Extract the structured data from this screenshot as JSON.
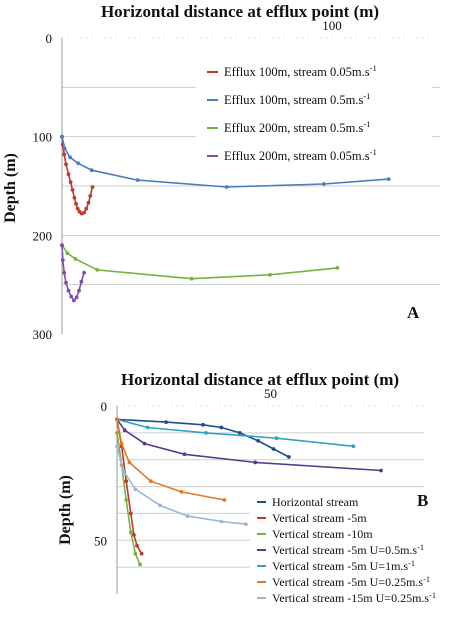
{
  "chart_data": [
    {
      "type": "line",
      "panel_label": "A",
      "title": "Horizontal distance at efflux point (m)",
      "xlabel": "Horizontal distance at efflux point (m)",
      "ylabel": "Depth (m)",
      "x_ticks": [
        "100"
      ],
      "y_ticks": [
        "0",
        "100",
        "200",
        "300"
      ],
      "xlim": [
        0,
        140
      ],
      "ylim": [
        0,
        300
      ],
      "y_inverted": true,
      "grid": true,
      "legend_position": "right",
      "series": [
        {
          "name": "Efflux 100m, stream 0.05m.s-1",
          "color": "#c0392b",
          "points": [
            [
              0,
              100
            ],
            [
              0.3,
              108
            ],
            [
              0.8,
              118
            ],
            [
              1.5,
              128
            ],
            [
              2.4,
              138
            ],
            [
              3.2,
              146
            ],
            [
              3.9,
              154
            ],
            [
              4.6,
              162
            ],
            [
              5.2,
              168
            ],
            [
              5.8,
              173
            ],
            [
              6.5,
              176
            ],
            [
              7.3,
              178
            ],
            [
              8.2,
              177
            ],
            [
              9,
              173
            ],
            [
              9.8,
              167
            ],
            [
              10.5,
              160
            ],
            [
              11.3,
              151
            ]
          ]
        },
        {
          "name": "Efflux 100m, stream 0.5m.s-1",
          "color": "#4a7ebb",
          "points": [
            [
              0,
              100
            ],
            [
              1,
              112
            ],
            [
              3,
              121
            ],
            [
              6,
              127
            ],
            [
              11,
              134
            ],
            [
              28,
              144
            ],
            [
              61,
              151
            ],
            [
              97,
              148
            ],
            [
              121,
              143
            ]
          ]
        },
        {
          "name": "Efflux 200m, stream 0.5m.s-1",
          "color": "#77b341",
          "points": [
            [
              0,
              210
            ],
            [
              2,
              218
            ],
            [
              5,
              224
            ],
            [
              13,
              235
            ],
            [
              48,
              244
            ],
            [
              77,
              240
            ],
            [
              102,
              233
            ]
          ]
        },
        {
          "name": "Efflux 200m, stream 0.05m.s-1",
          "color": "#7d4ea8",
          "points": [
            [
              0,
              210
            ],
            [
              0.3,
              225
            ],
            [
              0.8,
              238
            ],
            [
              1.5,
              248
            ],
            [
              2.4,
              256
            ],
            [
              3.4,
              262
            ],
            [
              4.4,
              266
            ],
            [
              5.4,
              263
            ],
            [
              6.3,
              256
            ],
            [
              7.2,
              247
            ],
            [
              8.2,
              238
            ]
          ]
        }
      ]
    },
    {
      "type": "line",
      "panel_label": "B",
      "title": "Horizontal distance at efflux point (m)",
      "xlabel": "Horizontal distance at efflux point (m)",
      "ylabel": "Depth (m)",
      "x_ticks": [
        "50"
      ],
      "y_ticks": [
        "0",
        "50"
      ],
      "xlim": [
        0,
        100
      ],
      "ylim": [
        0,
        70
      ],
      "y_inverted": true,
      "grid": true,
      "legend_position": "bottom-right",
      "series": [
        {
          "name": "Horizontal stream",
          "color": "#1f4e8c",
          "points": [
            [
              0,
              5
            ],
            [
              16,
              6
            ],
            [
              28,
              7
            ],
            [
              34,
              8
            ],
            [
              40,
              10
            ],
            [
              46,
              13
            ],
            [
              51,
              16
            ],
            [
              56,
              19
            ]
          ]
        },
        {
          "name": "Vertical stream -5m",
          "color": "#c0392b",
          "points": [
            [
              0,
              5
            ],
            [
              1.5,
              15
            ],
            [
              3,
              28
            ],
            [
              4.5,
              40
            ],
            [
              5.5,
              48
            ],
            [
              6.5,
              52
            ],
            [
              8,
              55
            ]
          ]
        },
        {
          "name": "Vertical stream -10m",
          "color": "#77b341",
          "points": [
            [
              0,
              10
            ],
            [
              1.5,
              22
            ],
            [
              3,
              35
            ],
            [
              4.5,
              47
            ],
            [
              6,
              55
            ],
            [
              7.5,
              59
            ]
          ]
        },
        {
          "name": "Vertical stream -5m U=0.5m.s-1",
          "color": "#5b3a8e",
          "points": [
            [
              0,
              5
            ],
            [
              2.5,
              9
            ],
            [
              9,
              14
            ],
            [
              22,
              18
            ],
            [
              45,
              21
            ],
            [
              86,
              24
            ]
          ]
        },
        {
          "name": "Vertical stream -5m U=1m.s-1",
          "color": "#2fa3c4",
          "points": [
            [
              0,
              5
            ],
            [
              10,
              8
            ],
            [
              29,
              10
            ],
            [
              52,
              12
            ],
            [
              77,
              15
            ]
          ]
        },
        {
          "name": "Vertical stream -5m U=0.25m.s-1",
          "color": "#e07b27",
          "points": [
            [
              0,
              5
            ],
            [
              1.5,
              14
            ],
            [
              4,
              21
            ],
            [
              11,
              28
            ],
            [
              21,
              32
            ],
            [
              35,
              35
            ]
          ]
        },
        {
          "name": "Vertical stream -15m U=0.25m.s-1",
          "color": "#9fb6d6",
          "points": [
            [
              0,
              15
            ],
            [
              2,
              24
            ],
            [
              6,
              31
            ],
            [
              14,
              37
            ],
            [
              23,
              41
            ],
            [
              34,
              43
            ],
            [
              42,
              44
            ]
          ]
        }
      ]
    }
  ]
}
